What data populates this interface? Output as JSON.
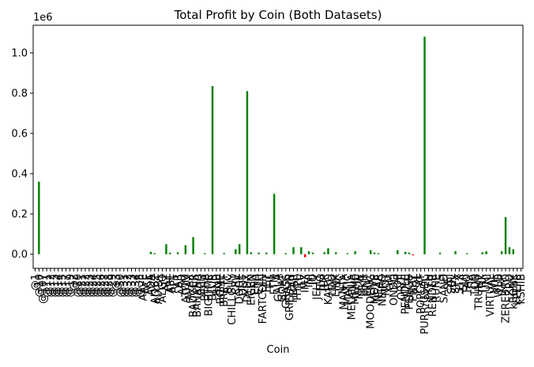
{
  "chart_data": {
    "type": "bar",
    "title": "Total Profit by Coin (Both Datasets)",
    "x_label": "Coin",
    "y_offset_label": "1e6",
    "categories": [
      "@1",
      "@10",
      "@107",
      "@11",
      "@12",
      "@13",
      "@14",
      "@15",
      "@17",
      "@19",
      "@2",
      "@20",
      "@21",
      "@22",
      "@23",
      "@24",
      "@25",
      "@26",
      "@27",
      "@28",
      "@29",
      "@3",
      "@30",
      "@31",
      "@32",
      "@33",
      "@34",
      "@35",
      "AAVE",
      "ACE",
      "ADA",
      "AI16Z",
      "AIXBT",
      "ALGO",
      "ALT",
      "APE",
      "APT",
      "AR",
      "ARB",
      "ATOM",
      "AVAX",
      "BADGER",
      "BANANA",
      "BCH",
      "BERA",
      "BIGTIME",
      "BLUR",
      "BNB",
      "BOME",
      "BRETT",
      "BTC",
      "CHILLGUY",
      "CRV",
      "DOGE",
      "DOT",
      "DYDX",
      "EIGEN",
      "ENA",
      "ETH",
      "FARTCOIN",
      "FET",
      "FIL",
      "FTM",
      "GALA",
      "GOAT",
      "GRASS",
      "GRIFFAIN",
      "HBAR",
      "HYPE",
      "ILV",
      "IMX",
      "INJ",
      "IO",
      "JELLY",
      "JTO",
      "JUP",
      "KAITO",
      "LDO",
      "LINK",
      "LTC",
      "MANTA",
      "MATIC",
      "MELANIA",
      "MEME",
      "MEW",
      "MKR",
      "MNT",
      "MOODENG",
      "MOVE",
      "NEAR",
      "NEIRO",
      "NOT",
      "OM",
      "ONDO",
      "OP",
      "ORDI",
      "PENDLE",
      "PENGU",
      "PNUT",
      "POL",
      "POPCAT",
      "PURR/USDC",
      "PYTH",
      "RENDER",
      "RUNE",
      "S",
      "SAND",
      "SEI",
      "SOL",
      "SPX",
      "STX",
      "SUI",
      "TAO",
      "TIA",
      "TON",
      "TRUMP",
      "TRX",
      "UNI",
      "VIRTUAL",
      "WIF",
      "WLD",
      "XRP",
      "ZEREBRO",
      "ZRO",
      "kBONK",
      "kPEPE",
      "kSHIB"
    ],
    "values": [
      0,
      360000,
      0,
      0,
      0,
      0,
      0,
      0,
      0,
      0,
      0,
      0,
      0,
      0,
      0,
      0,
      0,
      0,
      0,
      0,
      0,
      0,
      0,
      0,
      0,
      0,
      0,
      0,
      0,
      0,
      12000,
      5000,
      0,
      0,
      50000,
      8000,
      0,
      10000,
      0,
      45000,
      0,
      85000,
      0,
      0,
      5000,
      0,
      835000,
      0,
      0,
      6000,
      0,
      0,
      25000,
      50000,
      0,
      810000,
      10000,
      0,
      8000,
      0,
      8000,
      0,
      300000,
      0,
      0,
      5000,
      0,
      35000,
      0,
      35000,
      -15000,
      15000,
      8000,
      0,
      0,
      10000,
      30000,
      0,
      10000,
      0,
      0,
      5000,
      0,
      15000,
      0,
      0,
      0,
      20000,
      8000,
      5000,
      0,
      0,
      0,
      0,
      20000,
      0,
      12000,
      8000,
      -5000,
      0,
      0,
      1080000,
      0,
      0,
      0,
      8000,
      0,
      0,
      0,
      15000,
      0,
      0,
      5000,
      0,
      0,
      0,
      10000,
      15000,
      0,
      0,
      0,
      15000,
      185000,
      35000,
      25000,
      0,
      0
    ],
    "color": "green",
    "negative_color": "red",
    "ylim": [
      -70000,
      1137000
    ],
    "yticks": [
      {
        "value": 0,
        "label": "0.0"
      },
      {
        "value": 200000,
        "label": "0.2"
      },
      {
        "value": 400000,
        "label": "0.4"
      },
      {
        "value": 600000,
        "label": "0.6"
      },
      {
        "value": 800000,
        "label": "0.8"
      },
      {
        "value": 1000000,
        "label": "1.0"
      }
    ],
    "grid": false
  }
}
